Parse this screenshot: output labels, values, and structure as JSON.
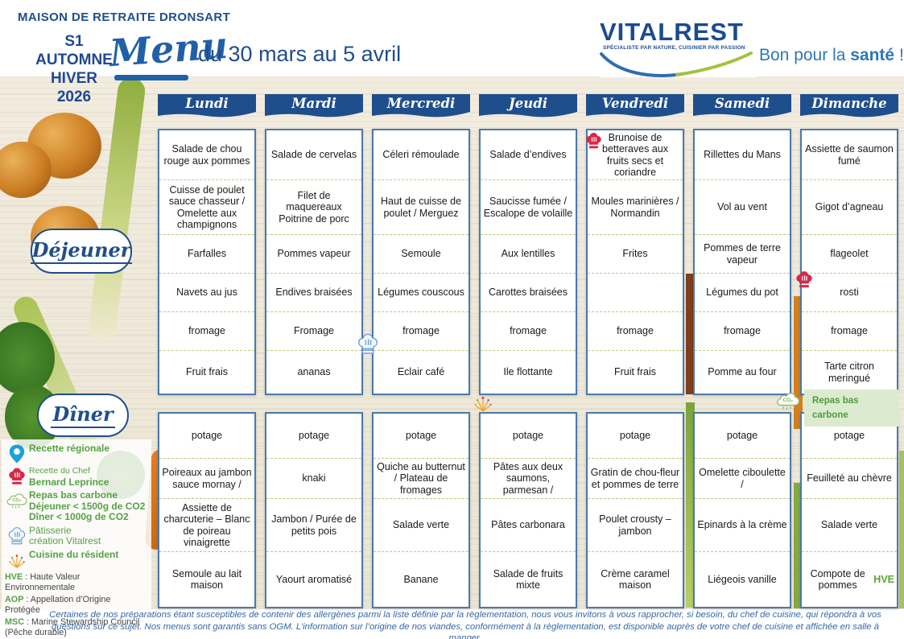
{
  "header": {
    "facility": "MAISON DE RETRAITE DRONSART",
    "season": [
      "S1",
      "AUTOMNE",
      "HIVER",
      "2026"
    ],
    "menu_script": "Menu",
    "date_range": "du 30 mars au 5 avril",
    "brand": {
      "name": "VITALREST",
      "tagline": "SPÉCIALISTE PAR NATURE, CUISINIER PAR PASSION"
    },
    "slogan": {
      "prefix": "Bon pour la ",
      "bold": "santé",
      "suffix": " !"
    }
  },
  "meal_labels": {
    "lunch": "Déjeuner",
    "dinner": "Dîner"
  },
  "days": [
    {
      "name": "Lundi",
      "lunch": [
        "Salade de chou rouge aux pommes",
        "Cuisse de poulet sauce chasseur / Omelette aux champignons",
        "Farfalles",
        "Navets au jus",
        "fromage",
        "Fruit frais"
      ],
      "dinner": [
        "potage",
        "Poireaux au jambon sauce mornay /",
        "Assiette de charcuterie – Blanc de poireau vinaigrette",
        "Semoule au lait maison"
      ]
    },
    {
      "name": "Mardi",
      "lunch": [
        "Salade de cervelas",
        "Filet de maquereaux Poitrine de porc",
        "Pommes vapeur",
        "Endives braisées",
        "Fromage",
        "ananas"
      ],
      "dinner": [
        "potage",
        "knaki",
        "Jambon / Purée de petits pois",
        "Yaourt aromatisé"
      ]
    },
    {
      "name": "Mercredi",
      "lunch": [
        "Céleri rémoulade",
        "Haut de cuisse de poulet / Merguez",
        "Semoule",
        "Légumes couscous",
        "fromage",
        "Eclair café"
      ],
      "dinner": [
        "potage",
        "Quiche au butternut / Plateau de fromages",
        "Salade verte",
        "Banane"
      ]
    },
    {
      "name": "Jeudi",
      "lunch": [
        "Salade d’endives",
        "Saucisse fumée / Escalope de volaille",
        "Aux lentilles",
        "Carottes braisées",
        "fromage",
        "Ile flottante"
      ],
      "dinner": [
        "potage",
        "Pâtes aux deux saumons, parmesan /",
        "Pâtes carbonara",
        "Salade de fruits mixte"
      ]
    },
    {
      "name": "Vendredi",
      "lunch": [
        "Brunoise de betteraves aux fruits secs et coriandre",
        "Moules marinières / Normandin",
        "Frites",
        "",
        "fromage",
        "Fruit frais"
      ],
      "dinner": [
        "potage",
        "Gratin de chou-fleur et pommes de terre",
        "Poulet crousty – jambon",
        "Crème caramel maison"
      ]
    },
    {
      "name": "Samedi",
      "lunch": [
        "Rillettes du Mans",
        "Vol au vent",
        "Pommes de terre vapeur",
        "Légumes du pot",
        "fromage",
        "Pomme au four"
      ],
      "dinner": [
        "potage",
        "Omelette ciboulette /",
        "Epinards à la crème",
        "Liégeois vanille"
      ]
    },
    {
      "name": "Dimanche",
      "lunch": [
        "Assiette de saumon fumé",
        "Gigot d’agneau",
        "flageolet",
        "rosti",
        "fromage",
        "Tarte citron meringué"
      ],
      "dinner": [
        "potage",
        "Feuilleté au chèvre",
        "Salade verte",
        {
          "text": "Compote de pommes",
          "highlight": "HVE"
        }
      ]
    }
  ],
  "markers": [
    {
      "icon": "chef-hat-icon",
      "day": "Vendredi",
      "meal": "lunch",
      "row": 0
    },
    {
      "icon": "chef-hat-icon",
      "day": "Dimanche",
      "meal": "lunch",
      "row": 3
    },
    {
      "icon": "pastry-icon",
      "day": "Mercredi",
      "meal": "lunch",
      "row": 5
    },
    {
      "icon": "resident-sparkle-icon",
      "day": "Jeudi",
      "meal": "dinner",
      "row": 0
    },
    {
      "icon": "low-carbon-icon",
      "day": "Dimanche",
      "meal": "dinner",
      "row": 0
    }
  ],
  "low_carbon_badge": {
    "line1": "Repas bas",
    "line2": "carbone"
  },
  "legend": {
    "items": [
      {
        "icon": "location-pin-icon",
        "lines": [
          {
            "t": "Recette régionale",
            "b": true
          }
        ]
      },
      {
        "icon": "chef-hat-icon",
        "lines": [
          {
            "t": "Recette du Chef",
            "sm": true
          },
          {
            "t": "Bernard Leprince",
            "b": true
          }
        ]
      },
      {
        "icon": "co2-cloud-icon",
        "lines": [
          {
            "t": "Repas bas carbone",
            "b": true
          },
          {
            "t": "Déjeuner < 1500g de CO2",
            "b": true
          },
          {
            "t": "Dîner < 1000g de CO2",
            "b": true
          }
        ]
      },
      {
        "icon": "pastry-icon",
        "lines": [
          {
            "t": "Pâtisserie"
          },
          {
            "t": "création Vitalrest"
          }
        ]
      },
      {
        "icon": "resident-sparkle-icon",
        "lines": [
          {
            "t": "Cuisine du résident",
            "b": true
          }
        ]
      }
    ],
    "abbreviations": [
      {
        "abbr": "HVE",
        "rest": " : Haute Valeur Environnementale"
      },
      {
        "abbr": "AOP",
        "rest": " : Appellation d’Origine Protégée"
      },
      {
        "abbr": "MSC",
        "rest": " : Marine Stewardship Council (Pêche durable)"
      }
    ]
  },
  "footer": {
    "text": "Certaines de nos préparations étant susceptibles de contenir des allergènes parmi la liste définie par la règlementation, nous vous invitons à vous rapprocher, si besoin, du chef de cuisine, qui répondra à vos questions sur ce sujet. Nos menus sont garantis sans OGM. L’information sur l’origine de nos viandes, conformément à la règlementation, est disponible auprès de votre chef de cuisine et affichée en salle à manger."
  },
  "colors": {
    "primary_blue": "#1f4e8c",
    "accent_green": "#55a045",
    "chef_red": "#d6294a",
    "low_carbon_bg": "#dcead0",
    "cell_border_blue": "#4a79ad"
  }
}
